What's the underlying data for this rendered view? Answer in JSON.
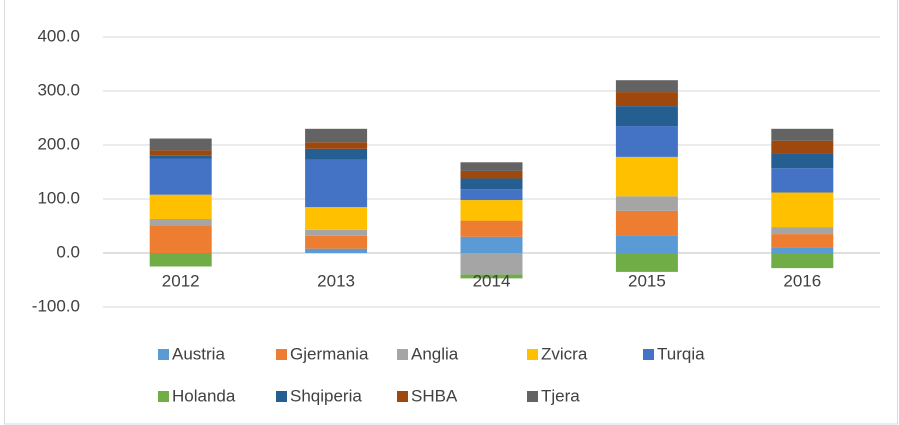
{
  "chart_data": {
    "type": "stacked_bar",
    "categories": [
      "2012",
      "2013",
      "2014",
      "2015",
      "2016"
    ],
    "series": [
      {
        "name": "Austria",
        "color": "#5b9bd5",
        "values": [
          0,
          8,
          30,
          33,
          10
        ]
      },
      {
        "name": "Gjermania",
        "color": "#ed7d31",
        "values": [
          50,
          24,
          30,
          45,
          25
        ]
      },
      {
        "name": "Anglia",
        "color": "#a5a5a5",
        "values": [
          13,
          11,
          -40,
          27,
          13
        ]
      },
      {
        "name": "Zvicra",
        "color": "#ffc000",
        "values": [
          45,
          42,
          38,
          73,
          64
        ]
      },
      {
        "name": "Turqia",
        "color": "#4472c4",
        "values": [
          67,
          88,
          20,
          57,
          45
        ]
      },
      {
        "name": "Holanda",
        "color": "#70ad47",
        "values": [
          -25,
          0,
          -7,
          -35,
          -28
        ]
      },
      {
        "name": "Shqiperia",
        "color": "#255e91",
        "values": [
          5,
          20,
          20,
          37,
          28
        ]
      },
      {
        "name": "SHBA",
        "color": "#9e480e",
        "values": [
          10,
          12,
          14,
          26,
          23
        ]
      },
      {
        "name": "Tjera",
        "color": "#636363",
        "values": [
          22,
          25,
          16,
          22,
          22
        ]
      }
    ],
    "ylim": [
      -100,
      400
    ],
    "yticks": [
      {
        "value": -100,
        "label": "-100.0"
      },
      {
        "value": 0,
        "label": "0.0"
      },
      {
        "value": 100,
        "label": "100.0"
      },
      {
        "value": 200,
        "label": "200.0"
      },
      {
        "value": 300,
        "label": "300.0"
      },
      {
        "value": 400,
        "label": "400.0"
      }
    ],
    "grid": true,
    "legend": "bottom"
  }
}
